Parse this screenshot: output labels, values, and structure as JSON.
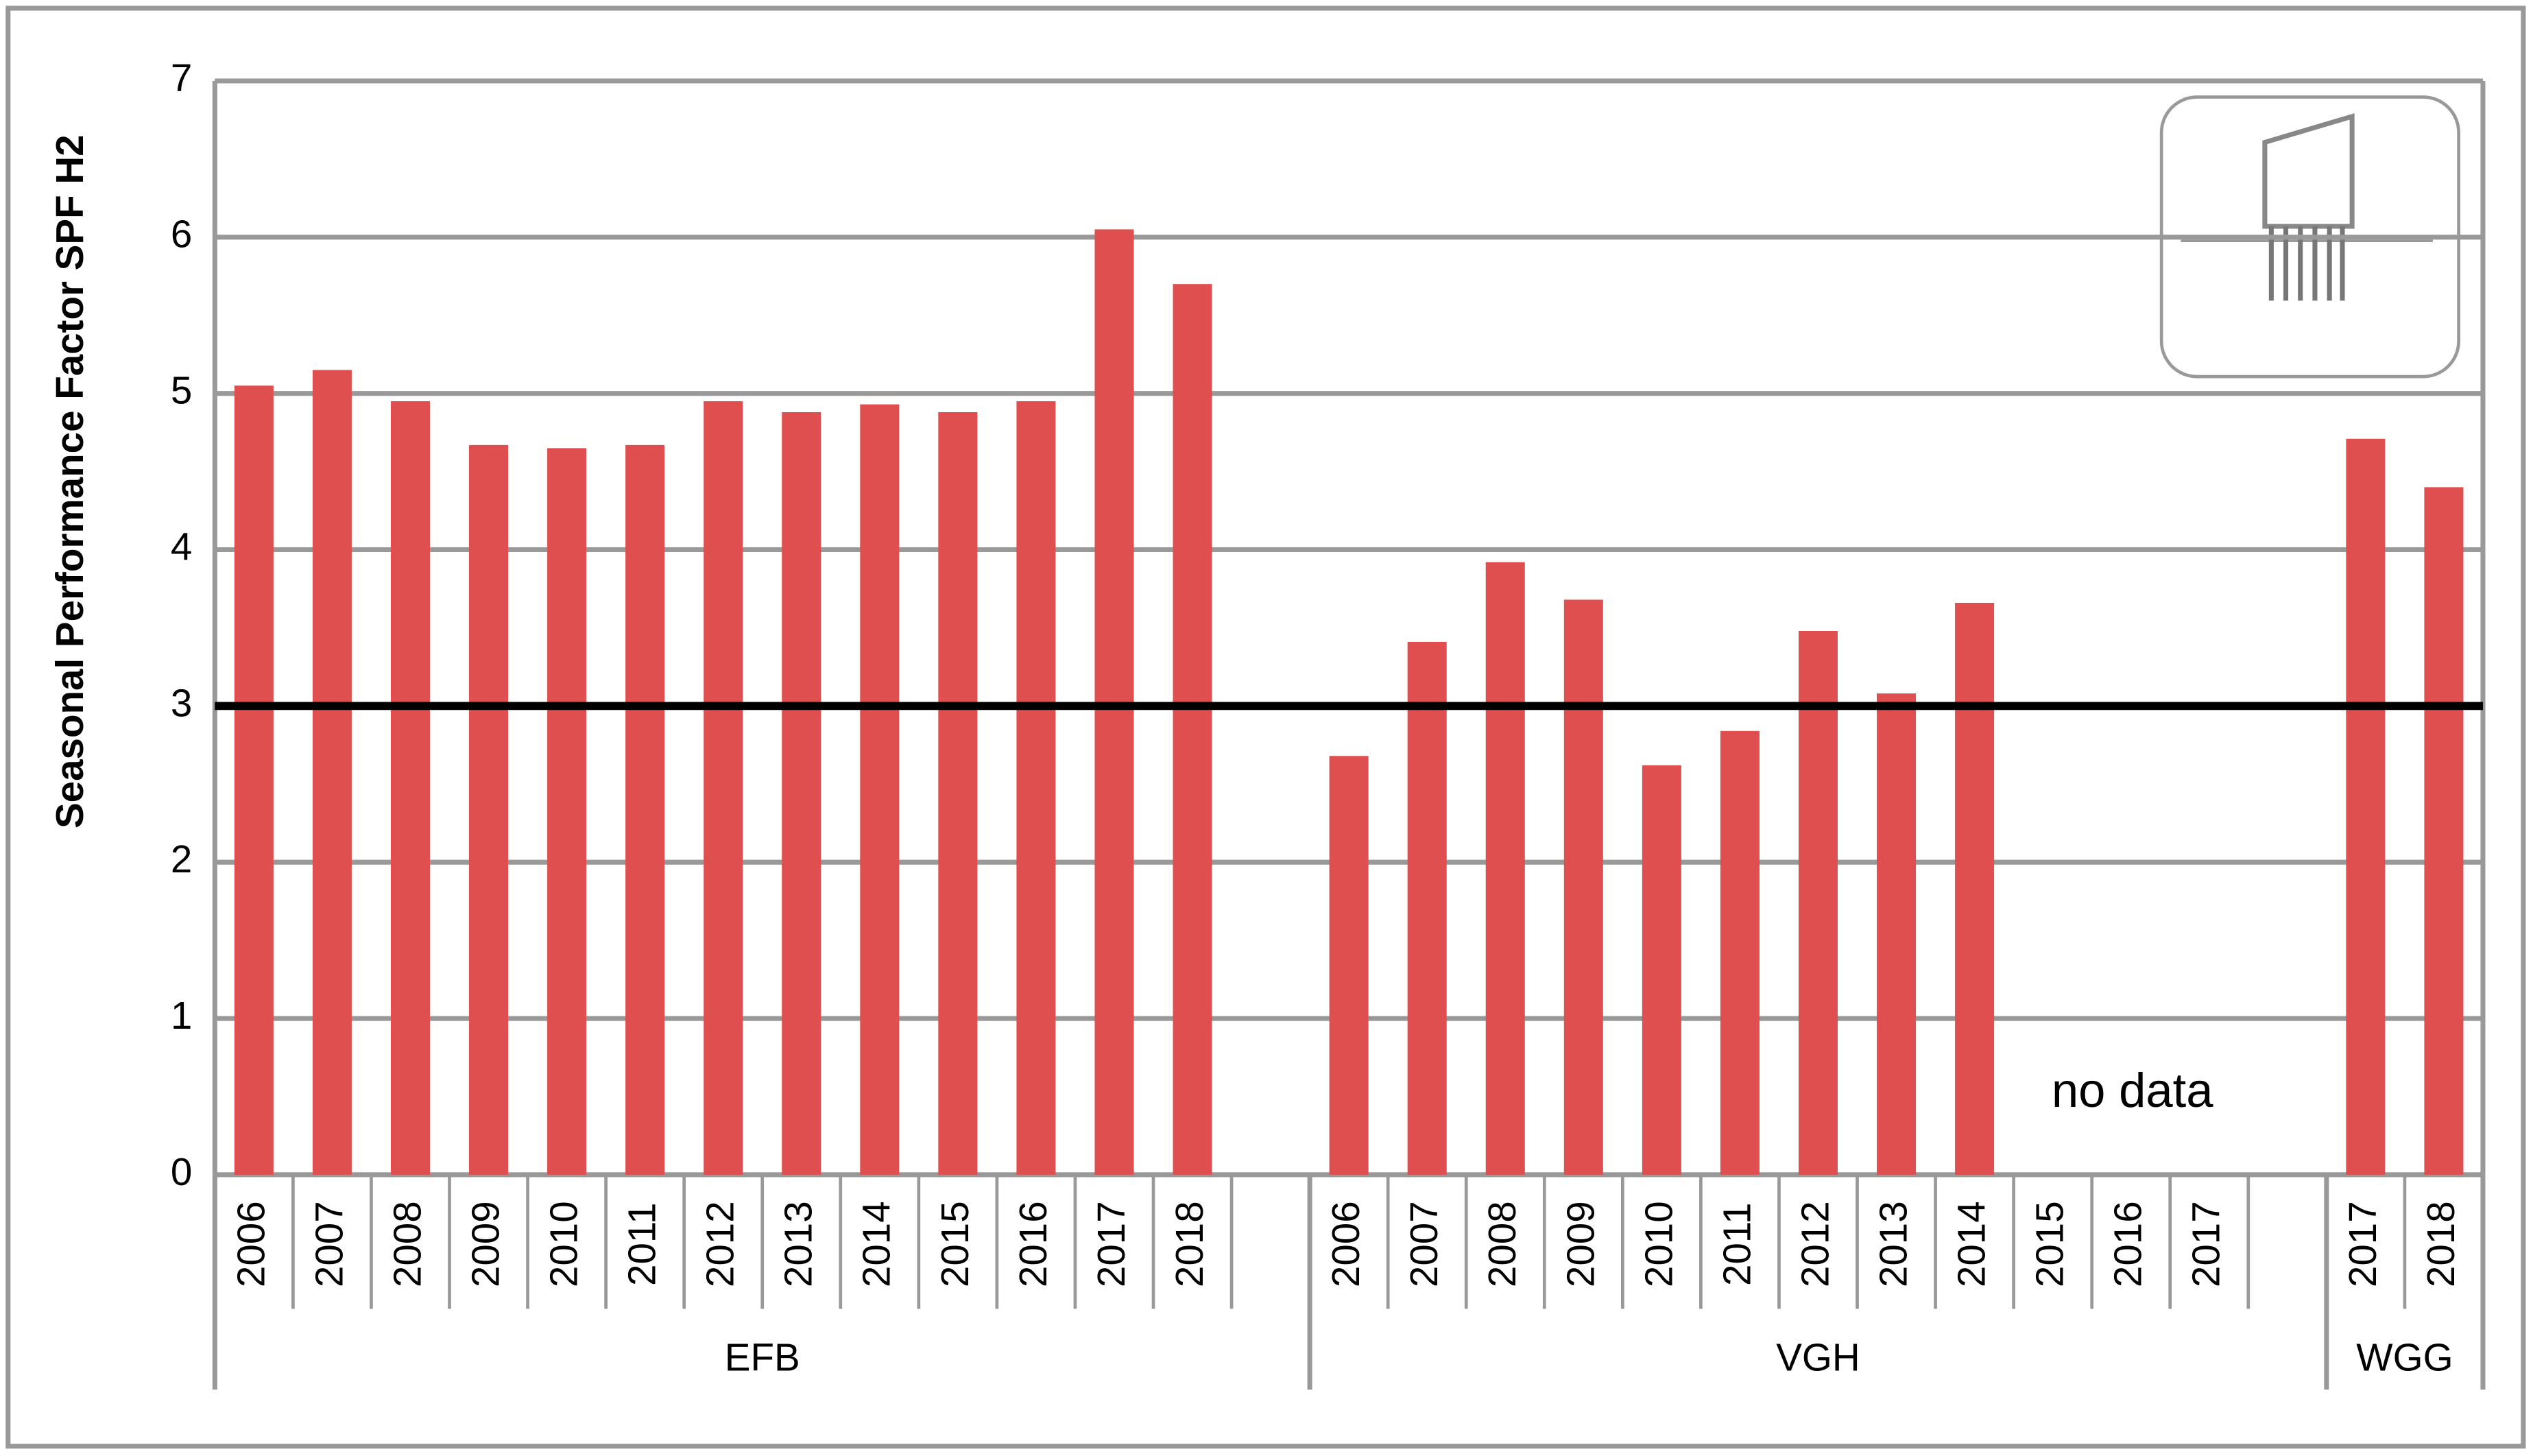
{
  "chart_data": {
    "type": "bar",
    "y_label": "Seasonal Performance Factor SPF H2",
    "categories": [
      "2006",
      "2007",
      "2008",
      "2009",
      "2010",
      "2011",
      "2012",
      "2013",
      "2014",
      "2015",
      "2016",
      "2017",
      "2018",
      null,
      "2006",
      "2007",
      "2008",
      "2009",
      "2010",
      "2011",
      "2012",
      "2013",
      "2014",
      "2015",
      "2016",
      "2017",
      null,
      "2017",
      "2018"
    ],
    "values": [
      5.05,
      5.15,
      4.95,
      4.67,
      4.65,
      4.67,
      4.95,
      4.88,
      4.93,
      4.88,
      4.95,
      6.05,
      5.7,
      null,
      2.68,
      3.41,
      3.92,
      3.68,
      2.62,
      2.84,
      3.48,
      3.08,
      3.66,
      null,
      null,
      null,
      null,
      4.71,
      4.4
    ],
    "groups": [
      "EFB",
      "VGH",
      "WGG"
    ],
    "color": "#df4f4f",
    "ylim": [
      0,
      7
    ],
    "yticks": [
      0,
      1,
      2,
      3,
      4,
      5,
      6,
      7
    ],
    "grid": true,
    "reference_line": 3,
    "annotation": "no data"
  }
}
